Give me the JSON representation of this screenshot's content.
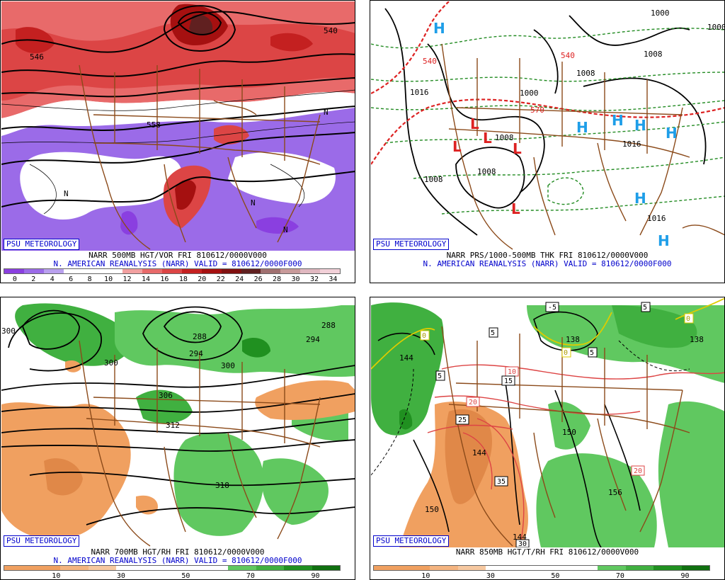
{
  "panels": [
    {
      "badge": "PSU METEOROLOGY",
      "line1": "NARR 500MB HGT/VOR FRI 810612/0000V000",
      "line2": "N. AMERICAN REANALYSIS (NARR) VALID = 810612/0000F000",
      "colorbar": {
        "colors": [
          "#8a3fe0",
          "#9b6be8",
          "#b9a0ee",
          "#ffffff",
          "#ffffff",
          "#ffffff",
          "#f2a0a0",
          "#e86a6a",
          "#dc4545",
          "#c42020",
          "#a51010",
          "#801010",
          "#602020",
          "#a07070",
          "#c89a9a",
          "#e0b8c0",
          "#f2d0d8"
        ],
        "ticks": [
          "0",
          "2",
          "4",
          "6",
          "8",
          "10",
          "12",
          "14",
          "16",
          "18",
          "20",
          "22",
          "24",
          "26",
          "28",
          "30",
          "32",
          "34"
        ]
      },
      "labels": [
        "546",
        "540",
        "558",
        "N"
      ]
    },
    {
      "badge": "PSU METEOROLOGY",
      "line1": "NARR PRS/1000-500MB THK FRI 810612/0000V000",
      "line2": "N. AMERICAN REANALYSIS (NARR) VALID = 810612/0000F000",
      "labels": [
        "1008",
        "1008",
        "1008",
        "1000",
        "1016",
        "1016",
        "1016",
        "1008",
        "1008",
        "540",
        "540",
        "570",
        "1000",
        "1016",
        "1008"
      ],
      "highs": [
        "H"
      ],
      "lows": [
        "L"
      ]
    },
    {
      "badge": "PSU METEOROLOGY",
      "line1": "NARR 700MB HGT/RH FRI 810612/0000V000",
      "line2": "N. AMERICAN REANALYSIS (NARR) VALID = 810612/0000F000",
      "colorbar": {
        "colors": [
          "#f0a060",
          "#f0a060",
          "#f4b480",
          "#f6c8a0",
          "#ffffff",
          "#ffffff",
          "#ffffff",
          "#ffffff",
          "#60c860",
          "#40b040",
          "#209020",
          "#107010"
        ],
        "ticks": [
          "10",
          "30",
          "50",
          "70",
          "90"
        ]
      },
      "labels": [
        "300",
        "288",
        "294",
        "300",
        "294",
        "288",
        "300",
        "306",
        "312",
        "318"
      ]
    },
    {
      "badge": "PSU METEOROLOGY",
      "line1": "NARR 850MB HGT/T/RH FRI 810612/0000V000",
      "line2": "",
      "colorbar": {
        "colors": [
          "#f0a060",
          "#f0a060",
          "#f4b480",
          "#f6c8a0",
          "#ffffff",
          "#ffffff",
          "#ffffff",
          "#ffffff",
          "#60c860",
          "#40b040",
          "#209020",
          "#107010"
        ],
        "ticks": [
          "10",
          "30",
          "50",
          "70",
          "90"
        ]
      },
      "labels": [
        "144",
        "138",
        "150",
        "144",
        "150",
        "156",
        "150",
        "144",
        "5",
        "-5",
        "5",
        "0",
        "0",
        "0",
        "5",
        "5",
        "10",
        "15",
        "20",
        "25",
        "20",
        "35",
        "30",
        "20"
      ]
    }
  ]
}
